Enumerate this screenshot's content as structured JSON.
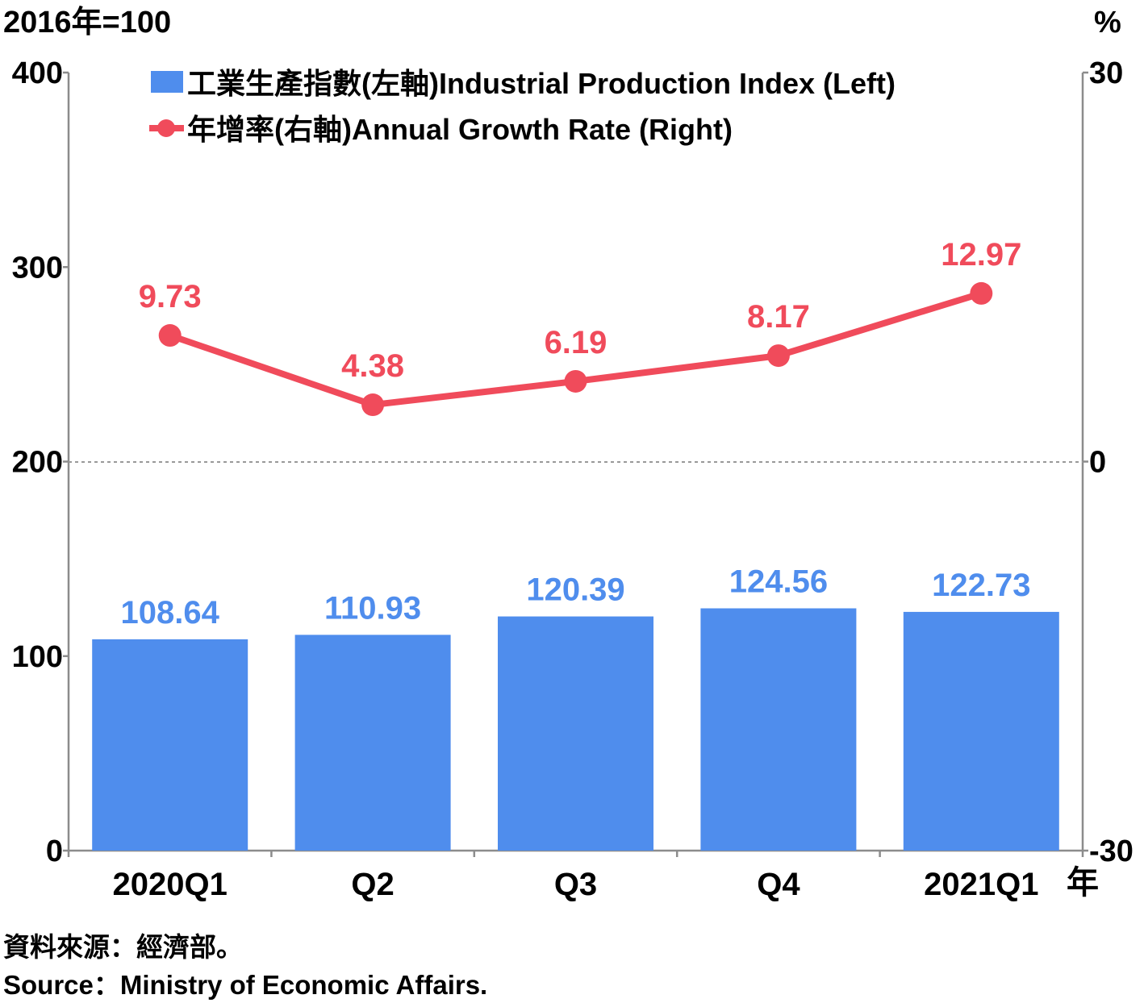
{
  "chart_data": {
    "type": "bar",
    "left_unit": "2016年=100",
    "right_unit": "%",
    "x_unit": "年",
    "categories": [
      "2020Q1",
      "Q2",
      "Q3",
      "Q4",
      "2021Q1"
    ],
    "left_axis": {
      "ticks": [
        "0",
        "100",
        "200",
        "300",
        "400"
      ],
      "range": [
        0,
        400
      ]
    },
    "right_axis": {
      "ticks": [
        "-30",
        "0",
        "30"
      ],
      "range": [
        -30,
        30
      ]
    },
    "series": [
      {
        "name": "工業生產指數(左軸)Industrial Production Index (Left)",
        "type": "bar",
        "axis": "left",
        "values": [
          108.64,
          110.93,
          120.39,
          124.56,
          122.73
        ],
        "labels": [
          "108.64",
          "110.93",
          "120.39",
          "124.56",
          "122.73"
        ]
      },
      {
        "name": "年增率(右軸)Annual Growth Rate (Right)",
        "type": "line",
        "axis": "right",
        "values": [
          9.73,
          4.38,
          6.19,
          8.17,
          12.97
        ],
        "labels": [
          "9.73",
          "4.38",
          "6.19",
          "8.17",
          "12.97"
        ]
      }
    ],
    "colors": {
      "bar": "#4f8ded",
      "line": "#f04b5b",
      "axis": "#8c8c8c",
      "zero_line": "#999999"
    },
    "grid": false,
    "legend_position": "top"
  },
  "source": {
    "zh": "資料來源：經濟部。",
    "en": "Source：Ministry of Economic Affairs."
  }
}
